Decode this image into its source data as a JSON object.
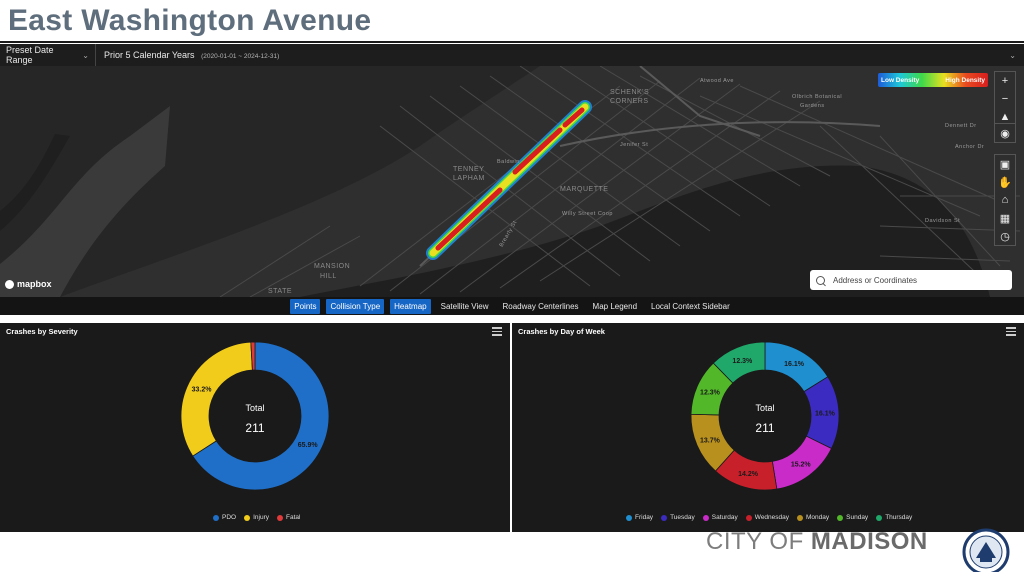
{
  "page": {
    "title": "East Washington Avenue"
  },
  "filters": {
    "preset_label": "Preset Date Range",
    "range_label": "Prior 5 Calendar Years",
    "range_dates": "(2020-01-01 ~ 2024-12-31)"
  },
  "map": {
    "legend_low": "Low Density",
    "legend_high": "High Density",
    "labels": {
      "schenks": "SCHENK'S",
      "corners": "CORNERS",
      "tenney": "TENNEY",
      "lapham": "LAPHAM",
      "marquette": "MARQUETTE",
      "mansion": "MANSION",
      "hill": "HILL",
      "state": "STATE",
      "olbrich": "Olbrich Botanical",
      "gardens": "Gardens",
      "atwood": "Atwood Ave",
      "willy": "Willy Street Coop",
      "jenifer": "Jenifer St",
      "dennett": "Dennett Dr",
      "anchor": "Anchor Dr",
      "davidson": "Davidson St",
      "baldwin": "Baldwin",
      "brearly": "Brearly St"
    },
    "search_placeholder": "Address or Coordinates",
    "attribution": "mapbox",
    "colors": {
      "low": "#1e5bd8",
      "high": "#d81e1e"
    }
  },
  "toolbar": {
    "points": "Points",
    "collision_type": "Collision Type",
    "heatmap": "Heatmap",
    "satellite": "Satellite View",
    "centerlines": "Roadway Centerlines",
    "legend": "Map Legend",
    "sidebar": "Local Context Sidebar"
  },
  "severity_panel": {
    "title": "Crashes by Severity",
    "total_label": "Total",
    "total_value": "211"
  },
  "dow_panel": {
    "title": "Crashes by Day of Week",
    "total_label": "Total",
    "total_value": "211"
  },
  "chart_data": [
    {
      "type": "pie",
      "title": "Crashes by Severity",
      "categories": [
        "PDO",
        "Injury",
        "Fatal"
      ],
      "values": [
        65.9,
        33.2,
        0.9
      ],
      "data_labels": [
        "65.9%",
        "33.2%",
        ""
      ],
      "colors": [
        "#1f6fc8",
        "#f2cc1b",
        "#e03a3a"
      ],
      "legend": "bottom"
    },
    {
      "type": "pie",
      "title": "Crashes by Day of Week",
      "categories": [
        "Friday",
        "Tuesday",
        "Saturday",
        "Wednesday",
        "Monday",
        "Sunday",
        "Thursday"
      ],
      "values": [
        16.1,
        16.1,
        15.2,
        14.2,
        13.7,
        12.3,
        12.3
      ],
      "data_labels": [
        "16.1%",
        "16.1%",
        "15.2%",
        "14.2%",
        "13.7%",
        "12.3%",
        "12.3%"
      ],
      "colors": [
        "#1f8fd0",
        "#3b2bc0",
        "#c82bc8",
        "#c8202a",
        "#b8901e",
        "#52b82a",
        "#1fa86a"
      ],
      "legend": "bottom"
    }
  ],
  "branding": {
    "city": "CITY OF",
    "name": "MADISON"
  }
}
